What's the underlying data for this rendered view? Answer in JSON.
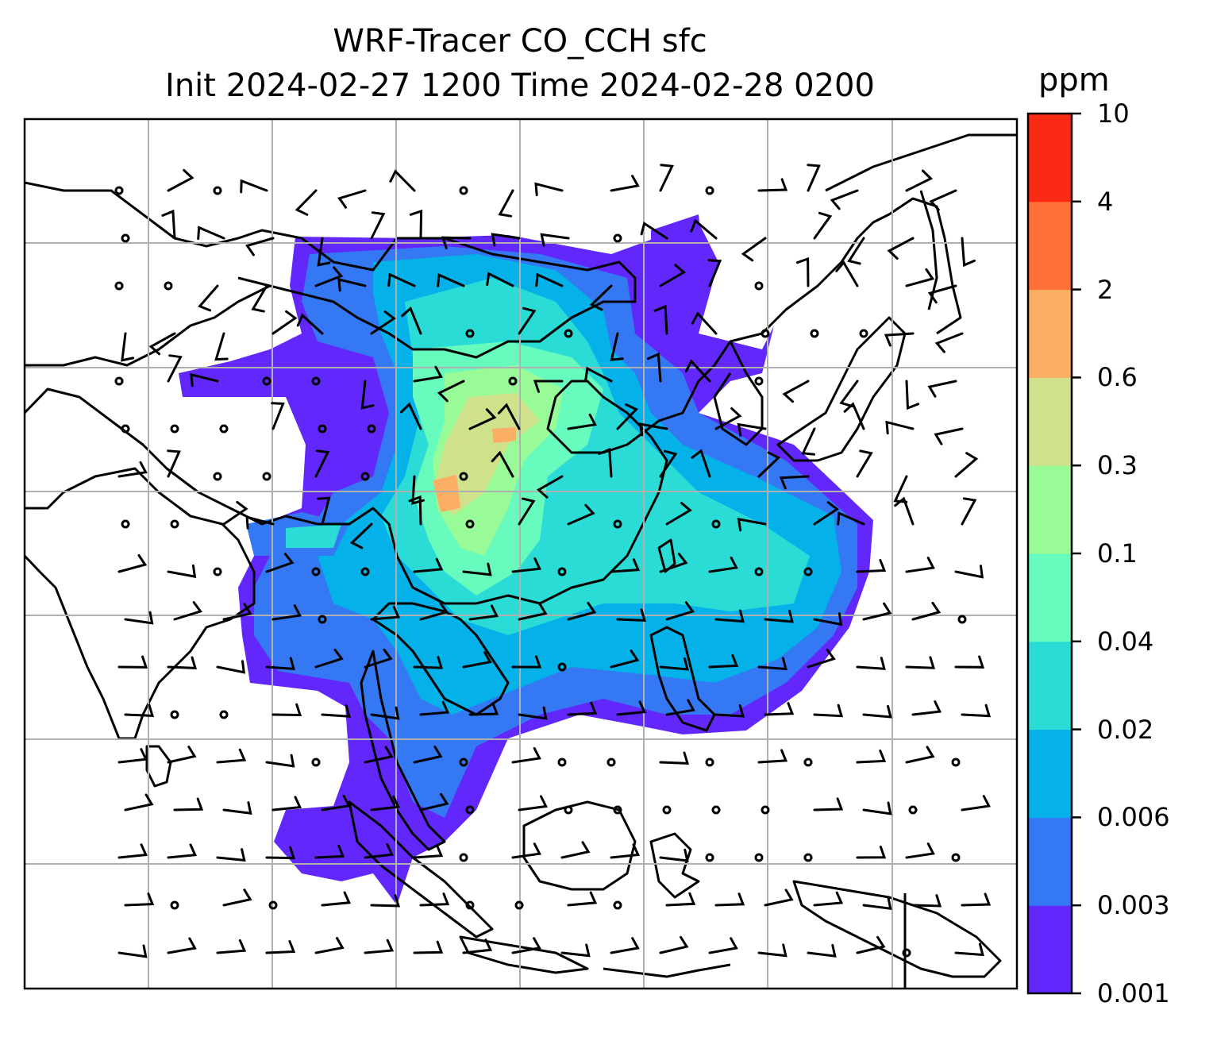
{
  "title": {
    "line1": "WRF-Tracer CO_CCH sfc",
    "line2": "Init 2024-02-27 1200 Time 2024-02-28 0200"
  },
  "colorbar": {
    "unit": "ppm",
    "ticks": [
      "0.001",
      "0.003",
      "0.006",
      "0.02",
      "0.04",
      "0.1",
      "0.3",
      "0.6",
      "2",
      "4",
      "10"
    ],
    "colors": [
      "#6228fb",
      "#3478f3",
      "#04b1e8",
      "#2bdcd6",
      "#68fbbe",
      "#98fb98",
      "#d0e18b",
      "#fcae65",
      "#fe7038",
      "#fa2a15"
    ]
  },
  "map": {
    "region": "East and Southeast Asia",
    "field": "CO_CCH tracer concentration (filled contours)",
    "overlay": "surface wind barbs",
    "gridlines": true,
    "coastlines": true,
    "borders": true
  }
}
